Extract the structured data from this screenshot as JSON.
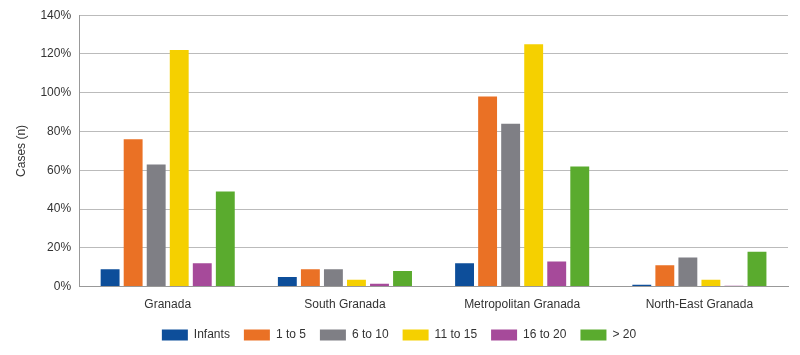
{
  "chart_data": {
    "type": "bar",
    "y_label": "Cases (n)",
    "categories": [
      "Granada",
      "South Granada",
      "Metropolitan Granada",
      "North-East Granada"
    ],
    "series": [
      {
        "name": "Infants",
        "color": "#0d4e9a",
        "values": [
          9,
          5,
          12,
          1
        ]
      },
      {
        "name": "1 to 5",
        "color": "#ea7125",
        "values": [
          76,
          9,
          98,
          11
        ]
      },
      {
        "name": "6 to 10",
        "color": "#7f7f85",
        "values": [
          63,
          9,
          84,
          15
        ]
      },
      {
        "name": "11 to 15",
        "color": "#f5d000",
        "values": [
          122,
          3.5,
          125,
          3.5
        ]
      },
      {
        "name": "16 to 20",
        "color": "#a64a9a",
        "values": [
          12,
          1.5,
          13,
          0.5
        ]
      },
      {
        "name": "> 20",
        "color": "#5aab2e",
        "values": [
          49,
          8,
          62,
          18
        ]
      }
    ],
    "ylim": [
      0,
      140
    ],
    "yticks": [
      {
        "value": 0,
        "label": "0%"
      },
      {
        "value": 20,
        "label": "20%"
      },
      {
        "value": 40,
        "label": "40%"
      },
      {
        "value": 60,
        "label": "60%"
      },
      {
        "value": 80,
        "label": "80%"
      },
      {
        "value": 100,
        "label": "100%"
      },
      {
        "value": 120,
        "label": "120%"
      },
      {
        "value": 140,
        "label": "140%"
      }
    ],
    "grid": true,
    "legend": "bottom"
  }
}
